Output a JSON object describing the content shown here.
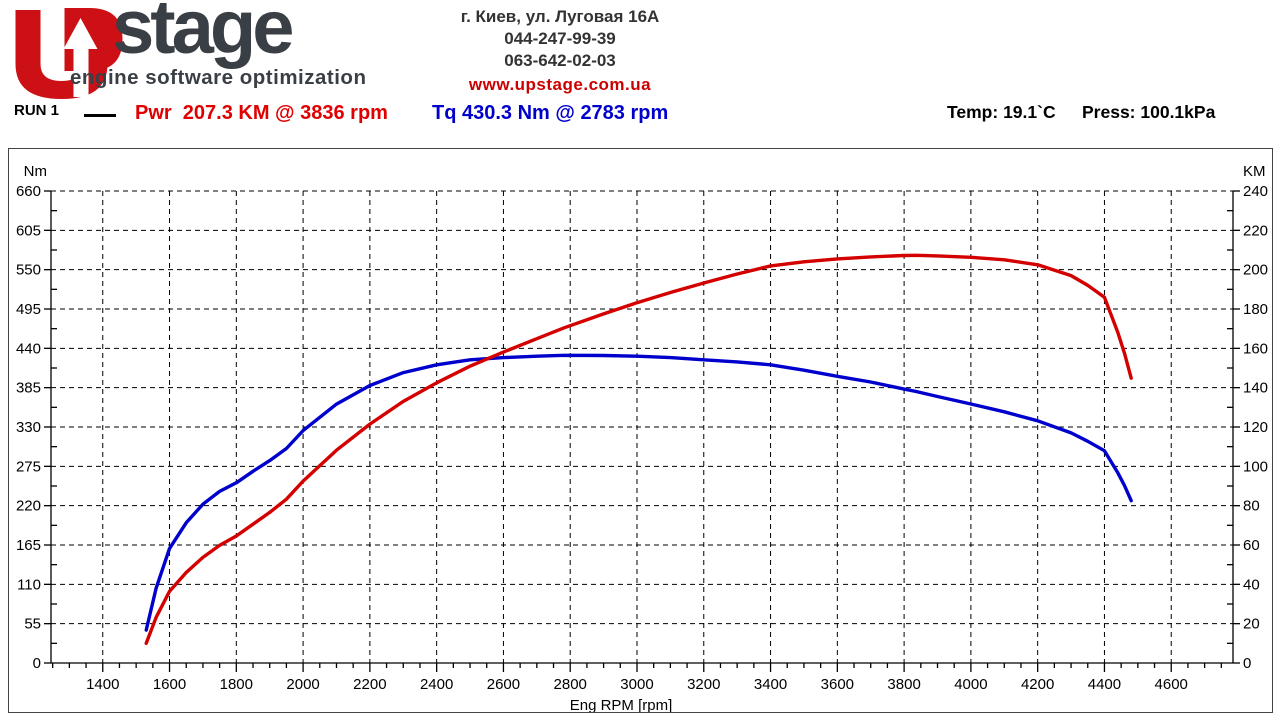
{
  "header": {
    "brand": "stage",
    "tagline": "engine software optimization",
    "contact": {
      "address": "г. Киев, ул. Луговая 16А",
      "phone1": "044-247-99-39",
      "phone2": "063-642-02-03",
      "website": "www.upstage.com.ua"
    }
  },
  "run": {
    "label": "RUN 1",
    "power_peak": "Pwr  207.3 KM @ 3836 rpm",
    "torque_peak": "Tq 430.3 Nm @ 2783 rpm",
    "temp": "Temp: 19.1`C",
    "press": "Press: 100.1kPa"
  },
  "colors": {
    "power": "#d40000",
    "torque": "#0000cc",
    "grid": "#000000",
    "axis": "#000000",
    "brand_red": "#cc1016",
    "brand_dark": "#3a3f46"
  },
  "chart_data": {
    "type": "line",
    "title": "",
    "xlabel": "Eng RPM [rpm]",
    "x_range": [
      1245,
      4785
    ],
    "x_major_ticks": [
      1400,
      1600,
      1800,
      2000,
      2200,
      2400,
      2600,
      2800,
      3000,
      3200,
      3400,
      3600,
      3800,
      4000,
      4200,
      4400,
      4600
    ],
    "x_minor_step": 50,
    "grid": "dashed",
    "left_axis": {
      "label": "Nm",
      "range": [
        0,
        660
      ],
      "ticks": [
        0,
        55,
        110,
        165,
        220,
        275,
        330,
        385,
        440,
        495,
        550,
        605,
        660
      ]
    },
    "right_axis": {
      "label": "KM",
      "range": [
        0,
        240
      ],
      "ticks": [
        0,
        20,
        40,
        60,
        80,
        100,
        120,
        140,
        160,
        180,
        200,
        220,
        240
      ]
    },
    "series": [
      {
        "name": "Torque",
        "axis": "left",
        "unit": "Nm",
        "color": "#0000cc",
        "peak_label": "430.3 Nm @ 2783 rpm",
        "x": [
          1530,
          1560,
          1600,
          1650,
          1700,
          1750,
          1800,
          1850,
          1900,
          1950,
          2000,
          2100,
          2200,
          2300,
          2400,
          2500,
          2600,
          2700,
          2783,
          2900,
          3000,
          3100,
          3200,
          3300,
          3400,
          3500,
          3600,
          3700,
          3800,
          3836,
          3900,
          4000,
          4100,
          4200,
          4300,
          4350,
          4400,
          4440,
          4460,
          4480
        ],
        "values": [
          46,
          105,
          160,
          196,
          222,
          240,
          252,
          268,
          283,
          300,
          325,
          362,
          388,
          406,
          417,
          424,
          427,
          429,
          430.3,
          430,
          429,
          427,
          424,
          421,
          417,
          409.4,
          400.9,
          392.9,
          383,
          379.6,
          372.7,
          362.2,
          351.2,
          338.6,
          321.8,
          310,
          296.9,
          266,
          248,
          227
        ]
      },
      {
        "name": "Power",
        "axis": "right",
        "unit": "KM",
        "color": "#d40000",
        "peak_label": "207.3 KM @ 3836 rpm",
        "x": [
          1530,
          1560,
          1600,
          1650,
          1700,
          1750,
          1800,
          1850,
          1900,
          1950,
          2000,
          2100,
          2200,
          2300,
          2400,
          2500,
          2600,
          2700,
          2783,
          2900,
          3000,
          3100,
          3200,
          3300,
          3400,
          3500,
          3600,
          3700,
          3800,
          3836,
          3900,
          4000,
          4100,
          4200,
          4300,
          4350,
          4400,
          4440,
          4460,
          4480
        ],
        "values": [
          10,
          23.3,
          36.4,
          46,
          53.7,
          59.8,
          64.6,
          70.6,
          76.6,
          83.3,
          92.5,
          108.2,
          121.5,
          133,
          142.5,
          150.9,
          158.1,
          164.9,
          170.5,
          177.5,
          183.2,
          188.4,
          193.2,
          197.8,
          201.9,
          204,
          205.5,
          206.5,
          207.2,
          207.3,
          207,
          206.3,
          205,
          202.5,
          197,
          192,
          186,
          168.1,
          157.5,
          144.8
        ]
      }
    ]
  }
}
